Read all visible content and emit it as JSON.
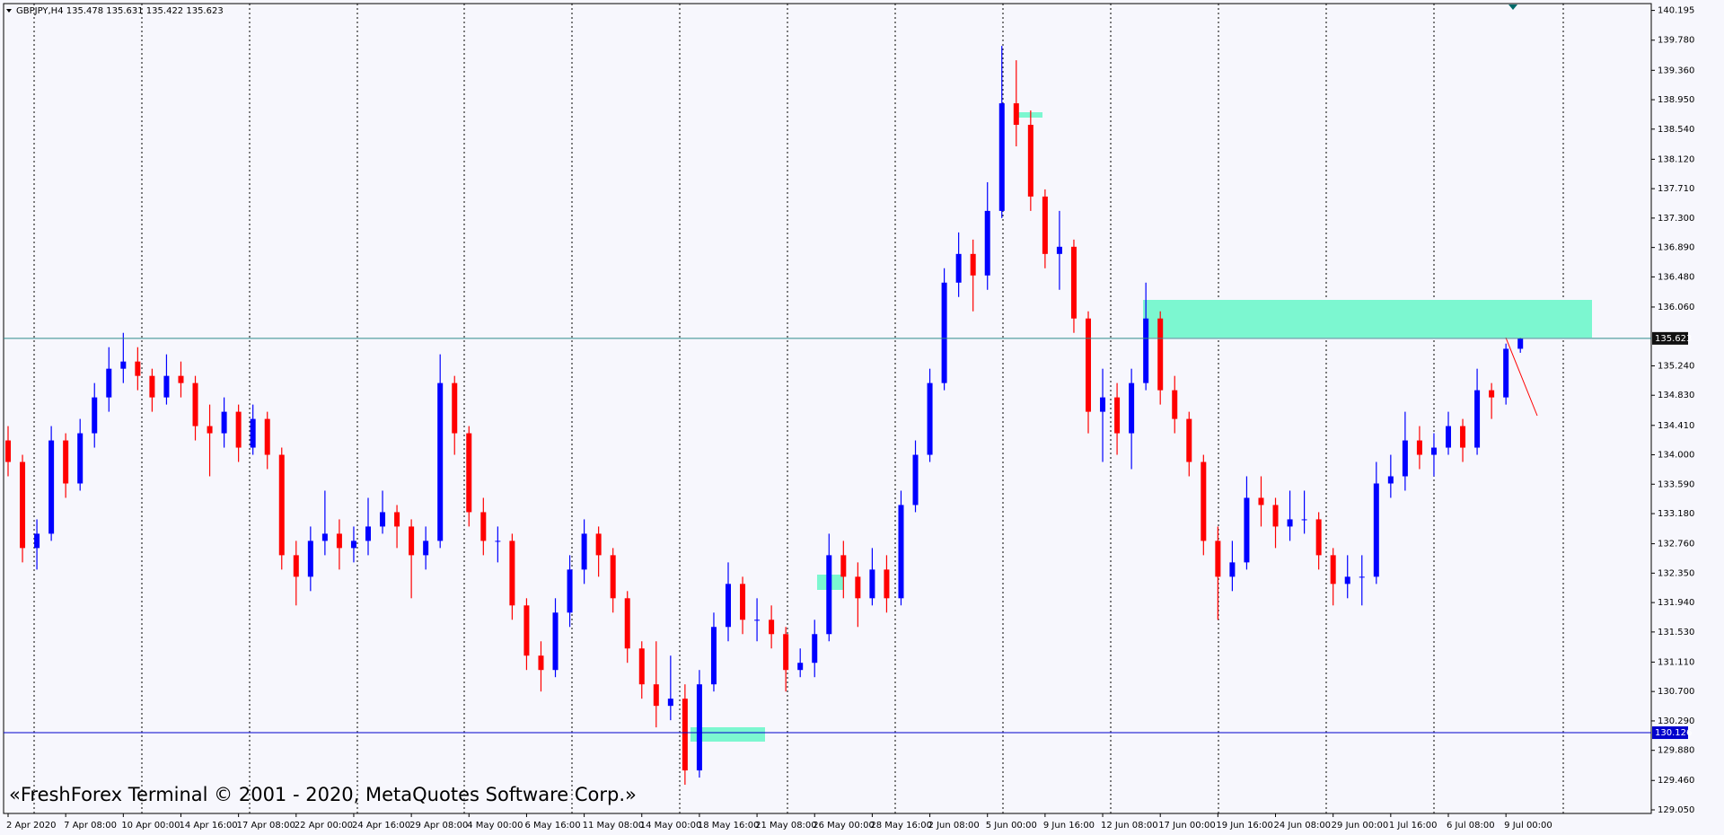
{
  "chart_data": {
    "type": "candlestick",
    "title": "GBPJPY,H4  135.478 135.631 135.422 135.623",
    "annotation": "«FreshForex Terminal © 2001 - 2020, MetaQuotes Software Corp.»",
    "up_color": "#0000ff",
    "down_color": "#ff0000",
    "categories": [
      "2 Apr 2020",
      null,
      null,
      null,
      "7 Apr 08:00",
      null,
      null,
      null,
      "10 Apr 00:00",
      null,
      null,
      null,
      "14 Apr 16:00",
      null,
      null,
      null,
      "17 Apr 08:00",
      null,
      null,
      null,
      "22 Apr 00:00",
      null,
      null,
      null,
      "24 Apr 16:00",
      null,
      null,
      null,
      "29 Apr 08:00",
      null,
      null,
      null,
      "4 May 00:00",
      null,
      null,
      null,
      "6 May 16:00",
      null,
      null,
      null,
      "11 May 08:00",
      null,
      null,
      null,
      "14 May 00:00",
      null,
      null,
      null,
      "18 May 16:00",
      null,
      null,
      null,
      "21 May 08:00",
      null,
      null,
      null,
      "26 May 00:00",
      null,
      null,
      null,
      "28 May 16:00",
      null,
      null,
      null,
      "2 Jun 08:00",
      null,
      null,
      null,
      "5 Jun 00:00",
      null,
      null,
      null,
      "9 Jun 16:00",
      null,
      null,
      null,
      "12 Jun 08:00",
      null,
      null,
      null,
      "17 Jun 00:00",
      null,
      null,
      null,
      "19 Jun 16:00",
      null,
      null,
      null,
      "24 Jun 08:00",
      null,
      null,
      null,
      "29 Jun 00:00",
      null,
      null,
      null,
      "1 Jul 16:00",
      null,
      null,
      null,
      "6 Jul 08:00",
      null,
      null,
      null,
      "9 Jul 00:00",
      null
    ],
    "ohlc": [
      [
        134.2,
        134.4,
        133.7,
        133.9
      ],
      [
        133.9,
        134.0,
        132.5,
        132.7
      ],
      [
        132.7,
        133.1,
        132.4,
        132.9
      ],
      [
        132.9,
        134.4,
        132.8,
        134.2
      ],
      [
        134.2,
        134.3,
        133.4,
        133.6
      ],
      [
        133.6,
        134.5,
        133.5,
        134.3
      ],
      [
        134.3,
        135.0,
        134.1,
        134.8
      ],
      [
        134.8,
        135.5,
        134.6,
        135.2
      ],
      [
        135.2,
        135.7,
        135.0,
        135.3
      ],
      [
        135.3,
        135.5,
        134.9,
        135.1
      ],
      [
        135.1,
        135.2,
        134.6,
        134.8
      ],
      [
        134.8,
        135.4,
        134.7,
        135.1
      ],
      [
        135.1,
        135.3,
        134.8,
        135.0
      ],
      [
        135.0,
        135.1,
        134.2,
        134.4
      ],
      [
        134.4,
        134.7,
        133.7,
        134.3
      ],
      [
        134.3,
        134.8,
        134.1,
        134.6
      ],
      [
        134.6,
        134.7,
        133.9,
        134.1
      ],
      [
        134.1,
        134.7,
        134.0,
        134.5
      ],
      [
        134.5,
        134.6,
        133.8,
        134.0
      ],
      [
        134.0,
        134.1,
        132.4,
        132.6
      ],
      [
        132.6,
        132.8,
        131.9,
        132.3
      ],
      [
        132.3,
        133.0,
        132.1,
        132.8
      ],
      [
        132.8,
        133.5,
        132.6,
        132.9
      ],
      [
        132.9,
        133.1,
        132.4,
        132.7
      ],
      [
        132.7,
        133.0,
        132.5,
        132.8
      ],
      [
        132.8,
        133.4,
        132.6,
        133.0
      ],
      [
        133.0,
        133.5,
        132.9,
        133.2
      ],
      [
        133.2,
        133.3,
        132.7,
        133.0
      ],
      [
        133.0,
        133.1,
        132.0,
        132.6
      ],
      [
        132.6,
        133.0,
        132.4,
        132.8
      ],
      [
        132.8,
        135.4,
        132.7,
        135.0
      ],
      [
        135.0,
        135.1,
        134.0,
        134.3
      ],
      [
        134.3,
        134.4,
        133.0,
        133.2
      ],
      [
        133.2,
        133.4,
        132.6,
        132.8
      ],
      [
        132.8,
        133.0,
        132.5,
        132.8
      ],
      [
        132.8,
        132.9,
        131.7,
        131.9
      ],
      [
        131.9,
        132.0,
        131.0,
        131.2
      ],
      [
        131.2,
        131.4,
        130.7,
        131.0
      ],
      [
        131.0,
        132.0,
        130.9,
        131.8
      ],
      [
        131.8,
        132.6,
        131.6,
        132.4
      ],
      [
        132.4,
        133.1,
        132.2,
        132.9
      ],
      [
        132.9,
        133.0,
        132.3,
        132.6
      ],
      [
        132.6,
        132.7,
        131.8,
        132.0
      ],
      [
        132.0,
        132.1,
        131.1,
        131.3
      ],
      [
        131.3,
        131.4,
        130.6,
        130.8
      ],
      [
        130.8,
        131.4,
        130.2,
        130.5
      ],
      [
        130.5,
        131.2,
        130.3,
        130.6
      ],
      [
        130.6,
        130.8,
        129.4,
        129.6
      ],
      [
        129.6,
        131.0,
        129.5,
        130.8
      ],
      [
        130.8,
        131.8,
        130.7,
        131.6
      ],
      [
        131.6,
        132.5,
        131.4,
        132.2
      ],
      [
        132.2,
        132.3,
        131.5,
        131.7
      ],
      [
        131.7,
        132.0,
        131.4,
        131.7
      ],
      [
        131.7,
        131.9,
        131.3,
        131.5
      ],
      [
        131.5,
        131.6,
        130.7,
        131.0
      ],
      [
        131.0,
        131.3,
        130.9,
        131.1
      ],
      [
        131.1,
        131.7,
        130.9,
        131.5
      ],
      [
        131.5,
        132.9,
        131.4,
        132.6
      ],
      [
        132.6,
        132.8,
        132.0,
        132.3
      ],
      [
        132.3,
        132.5,
        131.6,
        132.0
      ],
      [
        132.0,
        132.7,
        131.9,
        132.4
      ],
      [
        132.4,
        132.6,
        131.8,
        132.0
      ],
      [
        132.0,
        133.5,
        131.9,
        133.3
      ],
      [
        133.3,
        134.2,
        133.2,
        134.0
      ],
      [
        134.0,
        135.2,
        133.9,
        135.0
      ],
      [
        135.0,
        136.6,
        134.9,
        136.4
      ],
      [
        136.4,
        137.1,
        136.2,
        136.8
      ],
      [
        136.8,
        137.0,
        136.0,
        136.5
      ],
      [
        136.5,
        137.8,
        136.3,
        137.4
      ],
      [
        137.4,
        139.7,
        137.3,
        138.9
      ],
      [
        138.9,
        139.5,
        138.3,
        138.6
      ],
      [
        138.6,
        138.8,
        137.4,
        137.6
      ],
      [
        137.6,
        137.7,
        136.6,
        136.8
      ],
      [
        136.8,
        137.4,
        136.3,
        136.9
      ],
      [
        136.9,
        137.0,
        135.7,
        135.9
      ],
      [
        135.9,
        136.0,
        134.3,
        134.6
      ],
      [
        134.6,
        135.2,
        133.9,
        134.8
      ],
      [
        134.8,
        135.0,
        134.0,
        134.3
      ],
      [
        134.3,
        135.2,
        133.8,
        135.0
      ],
      [
        135.0,
        136.4,
        134.9,
        135.9
      ],
      [
        135.9,
        136.0,
        134.7,
        134.9
      ],
      [
        134.9,
        135.1,
        134.3,
        134.5
      ],
      [
        134.5,
        134.6,
        133.7,
        133.9
      ],
      [
        133.9,
        134.0,
        132.6,
        132.8
      ],
      [
        132.8,
        133.0,
        131.7,
        132.3
      ],
      [
        132.3,
        132.8,
        132.1,
        132.5
      ],
      [
        132.5,
        133.7,
        132.4,
        133.4
      ],
      [
        133.4,
        133.7,
        133.0,
        133.3
      ],
      [
        133.3,
        133.4,
        132.7,
        133.0
      ],
      [
        133.0,
        133.5,
        132.8,
        133.1
      ],
      [
        133.1,
        133.5,
        132.9,
        133.1
      ],
      [
        133.1,
        133.2,
        132.4,
        132.6
      ],
      [
        132.6,
        132.7,
        131.9,
        132.2
      ],
      [
        132.2,
        132.6,
        132.0,
        132.3
      ],
      [
        132.3,
        132.6,
        131.9,
        132.3
      ],
      [
        132.3,
        133.9,
        132.2,
        133.6
      ],
      [
        133.6,
        134.0,
        133.4,
        133.7
      ],
      [
        133.7,
        134.6,
        133.5,
        134.2
      ],
      [
        134.2,
        134.4,
        133.8,
        134.0
      ],
      [
        134.0,
        134.3,
        133.7,
        134.1
      ],
      [
        134.1,
        134.6,
        134.0,
        134.4
      ],
      [
        134.4,
        134.5,
        133.9,
        134.1
      ],
      [
        134.1,
        135.2,
        134.0,
        134.9
      ],
      [
        134.9,
        135.0,
        134.5,
        134.8
      ],
      [
        134.8,
        135.55,
        134.7,
        135.478
      ],
      [
        135.478,
        135.631,
        135.422,
        135.623
      ]
    ],
    "ylim": [
      129.0,
      140.29
    ],
    "yticks": [
      140.195,
      {
        "value": 139.78,
        "label": "139.780"
      },
      {
        "value": 139.36,
        "label": "139.360"
      },
      {
        "value": 138.95,
        "label": "138.950"
      },
      {
        "value": 138.54,
        "label": "138.540"
      },
      {
        "value": 138.12,
        "label": "138.120"
      },
      {
        "value": 137.71,
        "label": "137.710"
      },
      {
        "value": 137.3,
        "label": "137.300"
      },
      {
        "value": 136.89,
        "label": "136.890"
      },
      {
        "value": 136.48,
        "label": "136.480"
      },
      {
        "value": 136.06,
        "label": "136.060"
      },
      {
        "value": 135.24,
        "label": "135.240"
      },
      {
        "value": 134.83,
        "label": "134.830"
      },
      {
        "value": 134.41,
        "label": "134.410"
      },
      {
        "value": 134.0,
        "label": "134.000"
      },
      {
        "value": 133.59,
        "label": "133.590"
      },
      {
        "value": 133.18,
        "label": "133.180"
      },
      {
        "value": 132.76,
        "label": "132.760"
      },
      {
        "value": 132.35,
        "label": "132.350"
      },
      {
        "value": 131.94,
        "label": "131.940"
      },
      {
        "value": 131.53,
        "label": "131.530"
      },
      {
        "value": 131.11,
        "label": "131.110"
      },
      {
        "value": 130.7,
        "label": "130.700"
      },
      {
        "value": 130.29,
        "label": "130.290"
      },
      {
        "value": 129.88,
        "label": "129.880"
      },
      {
        "value": 129.46,
        "label": "129.460"
      },
      {
        "value": 129.05,
        "label": "129.050"
      }
    ],
    "price_lines": [
      {
        "value": 135.623,
        "color": "#2e8b8b",
        "box": "#111111"
      },
      {
        "value": 130.126,
        "color": "#0000cd",
        "box": "#0000cd"
      }
    ]
  }
}
